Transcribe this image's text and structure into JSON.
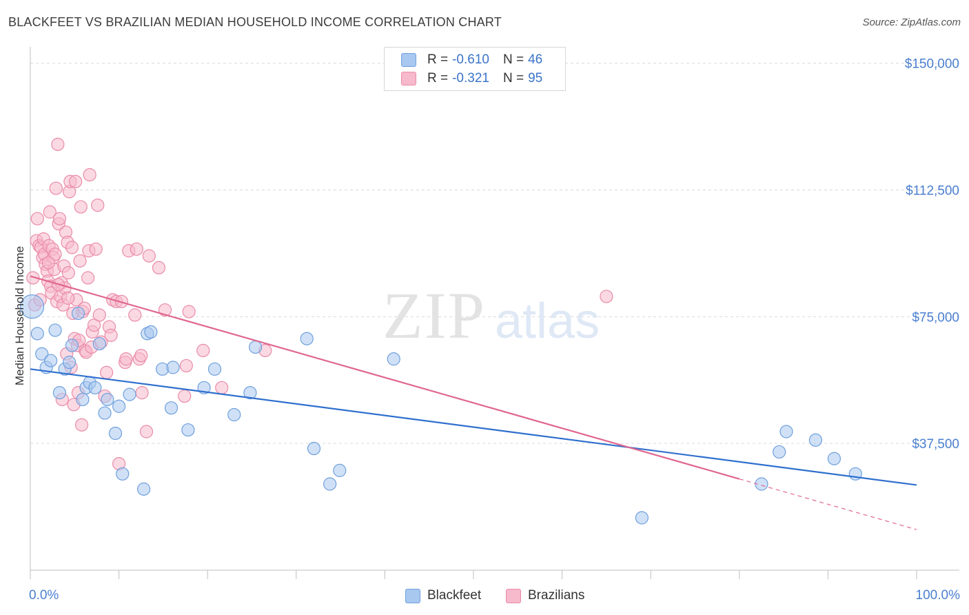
{
  "header": {
    "title": "BLACKFEET VS BRAZILIAN MEDIAN HOUSEHOLD INCOME CORRELATION CHART",
    "source": "Source: ZipAtlas.com"
  },
  "watermark": {
    "zip": "ZIP",
    "atlas": "atlas"
  },
  "legend": {
    "rows": [
      {
        "r_label": "R =",
        "r_value": "-0.610",
        "n_label": "N =",
        "n_value": "46",
        "color": "#a9c8f0"
      },
      {
        "r_label": "R =",
        "r_value": "-0.321",
        "n_label": "N =",
        "n_value": "95",
        "color": "#f7b9cc"
      }
    ]
  },
  "bottom_legend": {
    "blackfeet": "Blackfeet",
    "brazilians": "Brazilians"
  },
  "colors": {
    "blue_fill": "#a9c8f0",
    "blue_stroke": "#6e9fdc",
    "blue_line": "#2f6fce",
    "pink_fill": "#f7b9cc",
    "pink_stroke": "#e98aa8",
    "pink_line": "#e0668f",
    "tick_label": "#4a7fd0",
    "grid": "#d9d9d9"
  },
  "chart_data": {
    "type": "scatter",
    "title": "BLACKFEET VS BRAZILIAN MEDIAN HOUSEHOLD INCOME CORRELATION CHART",
    "xlabel": "",
    "ylabel": "Median Household Income",
    "xlim": [
      0,
      100
    ],
    "ylim": [
      0,
      153000
    ],
    "x_tick_labels": {
      "min": "0.0%",
      "max": "100.0%"
    },
    "y_ticks": [
      {
        "value": 37500,
        "label": "$37,500"
      },
      {
        "value": 75000,
        "label": "$75,000"
      },
      {
        "value": 112500,
        "label": "$112,500"
      },
      {
        "value": 150000,
        "label": "$150,000"
      }
    ],
    "grid": true,
    "series": [
      {
        "name": "Blackfeet",
        "trend": {
          "x0": 0,
          "y0": 59500,
          "x1": 100,
          "y1": 25200,
          "dashed_from": null
        },
        "points": [
          [
            0.2,
            78000,
            1
          ],
          [
            0.8,
            70000,
            0
          ],
          [
            1.3,
            64000,
            0
          ],
          [
            1.8,
            60000,
            0
          ],
          [
            2.3,
            62000,
            0
          ],
          [
            2.8,
            71000,
            0
          ],
          [
            3.3,
            52500,
            0
          ],
          [
            3.9,
            59500,
            0
          ],
          [
            4.4,
            61500,
            0
          ],
          [
            4.7,
            66500,
            0
          ],
          [
            5.4,
            76000,
            0
          ],
          [
            5.9,
            50500,
            0
          ],
          [
            6.3,
            54000,
            0
          ],
          [
            6.7,
            55500,
            0
          ],
          [
            7.3,
            54000,
            0
          ],
          [
            7.8,
            67000,
            0
          ],
          [
            8.4,
            46500,
            0
          ],
          [
            8.7,
            50500,
            0
          ],
          [
            9.6,
            40500,
            0
          ],
          [
            10.0,
            48500,
            0
          ],
          [
            10.4,
            28500,
            0
          ],
          [
            11.2,
            52000,
            0
          ],
          [
            12.8,
            24000,
            0
          ],
          [
            13.2,
            70000,
            0
          ],
          [
            13.6,
            70500,
            0
          ],
          [
            14.9,
            59500,
            0
          ],
          [
            15.9,
            48000,
            0
          ],
          [
            16.1,
            60000,
            0
          ],
          [
            17.8,
            41500,
            0
          ],
          [
            19.6,
            54000,
            0
          ],
          [
            20.8,
            59500,
            0
          ],
          [
            23.0,
            46000,
            0
          ],
          [
            24.8,
            52500,
            0
          ],
          [
            25.4,
            66000,
            0
          ],
          [
            31.2,
            68500,
            0
          ],
          [
            32.0,
            36000,
            0
          ],
          [
            33.8,
            25500,
            0
          ],
          [
            34.9,
            29500,
            0
          ],
          [
            41.0,
            62500,
            0
          ],
          [
            69.0,
            15500,
            0
          ],
          [
            82.5,
            25500,
            0
          ],
          [
            84.5,
            35000,
            0
          ],
          [
            85.3,
            41000,
            0
          ],
          [
            88.6,
            38500,
            0
          ],
          [
            90.7,
            33000,
            0
          ],
          [
            93.1,
            28500,
            0
          ]
        ]
      },
      {
        "name": "Brazilians",
        "trend": {
          "x0": 0,
          "y0": 87000,
          "x1": 80,
          "y1": 27000,
          "dashed_from": 80,
          "dashed_to_x": 100,
          "dashed_to_y": 12000
        },
        "points": [
          [
            0.3,
            86500,
            0
          ],
          [
            0.5,
            78500,
            0
          ],
          [
            0.7,
            97500,
            0
          ],
          [
            0.8,
            104000,
            0
          ],
          [
            1.0,
            96000,
            0
          ],
          [
            1.2,
            95500,
            0
          ],
          [
            1.4,
            92500,
            0
          ],
          [
            1.5,
            98000,
            0
          ],
          [
            1.6,
            93500,
            0
          ],
          [
            1.7,
            90500,
            0
          ],
          [
            1.9,
            88500,
            0
          ],
          [
            2.0,
            85500,
            0
          ],
          [
            2.1,
            96000,
            0
          ],
          [
            2.2,
            106000,
            0
          ],
          [
            2.3,
            84000,
            0
          ],
          [
            2.4,
            82000,
            0
          ],
          [
            2.5,
            95000,
            0
          ],
          [
            2.6,
            92500,
            0
          ],
          [
            2.7,
            89000,
            0
          ],
          [
            2.8,
            93500,
            0
          ],
          [
            2.9,
            113000,
            0
          ],
          [
            3.0,
            79500,
            0
          ],
          [
            3.1,
            126000,
            0
          ],
          [
            3.2,
            102500,
            0
          ],
          [
            3.3,
            104000,
            0
          ],
          [
            3.4,
            81000,
            0
          ],
          [
            3.5,
            85000,
            0
          ],
          [
            3.6,
            50500,
            0
          ],
          [
            3.7,
            78500,
            0
          ],
          [
            3.8,
            90000,
            0
          ],
          [
            3.9,
            83500,
            0
          ],
          [
            4.0,
            100000,
            0
          ],
          [
            4.1,
            64000,
            0
          ],
          [
            4.2,
            97000,
            0
          ],
          [
            4.3,
            88000,
            0
          ],
          [
            4.4,
            112000,
            0
          ],
          [
            4.5,
            115000,
            0
          ],
          [
            4.6,
            60000,
            0
          ],
          [
            4.7,
            95500,
            0
          ],
          [
            4.8,
            76000,
            0
          ],
          [
            4.9,
            49000,
            0
          ],
          [
            5.0,
            68500,
            0
          ],
          [
            5.1,
            115000,
            0
          ],
          [
            5.2,
            80000,
            0
          ],
          [
            5.3,
            66500,
            0
          ],
          [
            5.4,
            52500,
            0
          ],
          [
            5.5,
            68000,
            0
          ],
          [
            5.6,
            91500,
            0
          ],
          [
            5.7,
            107500,
            0
          ],
          [
            5.8,
            43000,
            0
          ],
          [
            5.9,
            76500,
            0
          ],
          [
            6.1,
            77500,
            0
          ],
          [
            6.2,
            65000,
            0
          ],
          [
            6.3,
            64500,
            0
          ],
          [
            6.5,
            86500,
            0
          ],
          [
            6.6,
            94500,
            0
          ],
          [
            6.7,
            117000,
            0
          ],
          [
            6.9,
            66000,
            0
          ],
          [
            7.0,
            70500,
            0
          ],
          [
            7.2,
            72500,
            0
          ],
          [
            7.4,
            95000,
            0
          ],
          [
            7.6,
            108000,
            0
          ],
          [
            7.8,
            75500,
            0
          ],
          [
            8.0,
            67500,
            0
          ],
          [
            8.4,
            51500,
            0
          ],
          [
            8.6,
            58500,
            0
          ],
          [
            8.9,
            72000,
            0
          ],
          [
            9.1,
            69500,
            0
          ],
          [
            9.3,
            80000,
            0
          ],
          [
            9.7,
            79500,
            0
          ],
          [
            10.0,
            31500,
            0
          ],
          [
            10.3,
            79500,
            0
          ],
          [
            10.7,
            61500,
            0
          ],
          [
            10.8,
            62500,
            0
          ],
          [
            11.1,
            94500,
            0
          ],
          [
            11.8,
            75500,
            0
          ],
          [
            12.0,
            95000,
            0
          ],
          [
            12.3,
            62500,
            0
          ],
          [
            12.5,
            63500,
            0
          ],
          [
            12.6,
            52500,
            0
          ],
          [
            13.1,
            41000,
            0
          ],
          [
            13.4,
            93000,
            0
          ],
          [
            14.5,
            89500,
            0
          ],
          [
            15.2,
            77000,
            0
          ],
          [
            17.4,
            51500,
            0
          ],
          [
            17.6,
            60500,
            0
          ],
          [
            17.9,
            76500,
            0
          ],
          [
            19.5,
            65000,
            0
          ],
          [
            21.6,
            54000,
            0
          ],
          [
            26.5,
            65000,
            0
          ],
          [
            65.0,
            81000,
            0
          ],
          [
            1.1,
            80000,
            0
          ],
          [
            2.05,
            91000,
            0
          ],
          [
            3.15,
            84500,
            0
          ],
          [
            4.25,
            80500,
            0
          ]
        ]
      }
    ]
  }
}
